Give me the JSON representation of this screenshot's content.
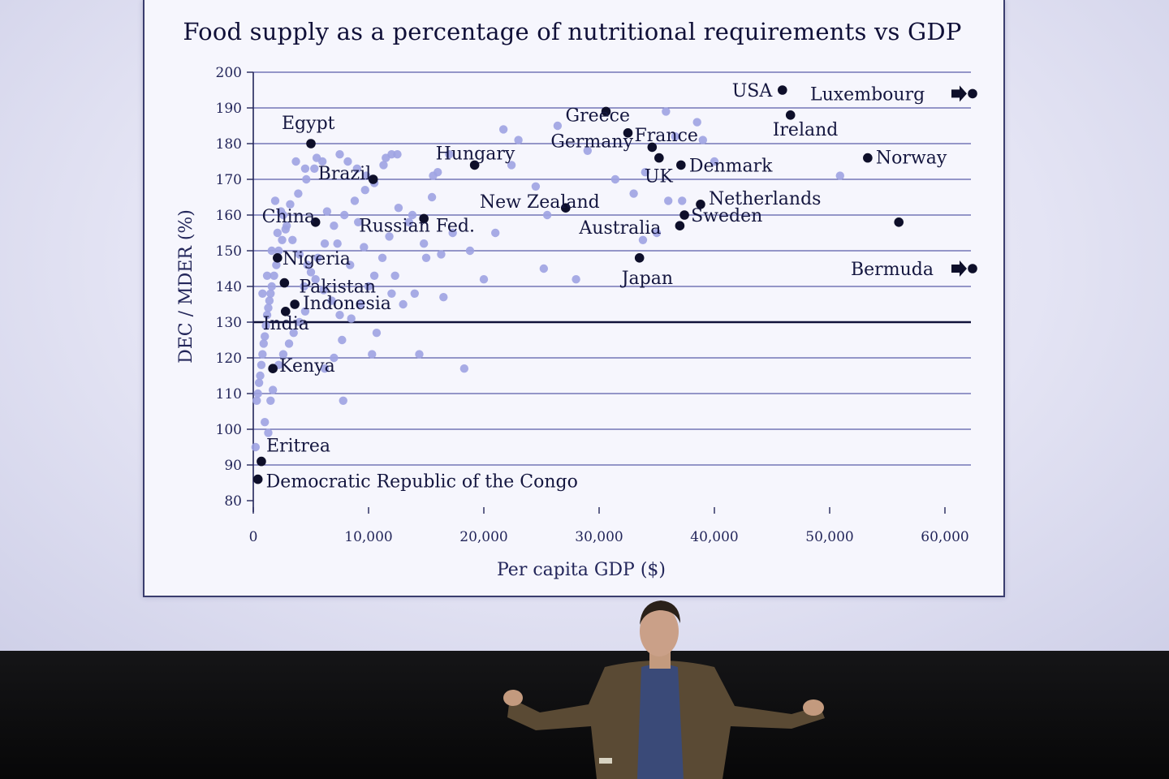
{
  "chart_data": {
    "type": "scatter",
    "title": "Food supply as a percentage of nutritional requirements vs GDP",
    "xlabel": "Per capita GDP ($)",
    "ylabel": "DEC / MDER (%)",
    "xlim": [
      0,
      62000
    ],
    "ylim": [
      80,
      200
    ],
    "x_ticks": [
      0,
      10000,
      20000,
      30000,
      40000,
      50000,
      60000
    ],
    "x_tick_labels": [
      "0",
      "10,000",
      "20,000",
      "30,000",
      "40,000",
      "50,000",
      "60,000"
    ],
    "y_ticks": [
      80,
      90,
      100,
      110,
      120,
      130,
      140,
      150,
      160,
      170,
      180,
      190,
      200
    ],
    "y_tick_labels": [
      "80",
      "90",
      "100",
      "110",
      "120",
      "130",
      "140",
      "150",
      "160",
      "170",
      "180",
      "190",
      "200"
    ],
    "reference_line_y": 130,
    "grid": true,
    "colors": {
      "highlight": "#0e0f2a",
      "other": "#9fa3e2",
      "grid": "#5a5ea8",
      "axis": "#23265a"
    },
    "labeled_points": [
      {
        "name": "USA",
        "x": 45900,
        "y": 195
      },
      {
        "name": "Luxembourg",
        "x": 62000,
        "y": 194,
        "off_scale": true
      },
      {
        "name": "Greece",
        "x": 30600,
        "y": 189
      },
      {
        "name": "Ireland",
        "x": 46600,
        "y": 188
      },
      {
        "name": "France",
        "x": 32500,
        "y": 183
      },
      {
        "name": "Egypt",
        "x": 5000,
        "y": 180
      },
      {
        "name": "Germany",
        "x": 34600,
        "y": 179
      },
      {
        "name": "Norway",
        "x": 53300,
        "y": 176
      },
      {
        "name": "UK",
        "x": 35200,
        "y": 176
      },
      {
        "name": "Hungary",
        "x": 19200,
        "y": 174
      },
      {
        "name": "Denmark",
        "x": 37100,
        "y": 174
      },
      {
        "name": "Brazil",
        "x": 10400,
        "y": 170
      },
      {
        "name": "Netherlands",
        "x": 38800,
        "y": 163
      },
      {
        "name": "New Zealand",
        "x": 27100,
        "y": 162
      },
      {
        "name": "Sweden",
        "x": 37400,
        "y": 160
      },
      {
        "name": "Russian Fed.",
        "x": 14800,
        "y": 159
      },
      {
        "name": "China",
        "x": 5400,
        "y": 158
      },
      {
        "name": "Australia",
        "x": 37000,
        "y": 157
      },
      {
        "name": "Japan",
        "x": 33500,
        "y": 148
      },
      {
        "name": "Nigeria",
        "x": 2100,
        "y": 148
      },
      {
        "name": "Bermuda",
        "x": 62000,
        "y": 145,
        "off_scale": true
      },
      {
        "name": "Pakistan",
        "x": 2700,
        "y": 141
      },
      {
        "name": "Indonesia",
        "x": 3600,
        "y": 135
      },
      {
        "name": "India",
        "x": 2800,
        "y": 133
      },
      {
        "name": "Kenya",
        "x": 1700,
        "y": 117
      },
      {
        "name": "Eritrea",
        "x": 700,
        "y": 91
      },
      {
        "name": "Democratic Republic of the Congo",
        "x": 400,
        "y": 86
      }
    ],
    "unlabeled_highlight": [
      {
        "x": 56000,
        "y": 158
      }
    ],
    "other_points": [
      [
        200,
        95
      ],
      [
        300,
        108
      ],
      [
        400,
        110
      ],
      [
        500,
        113
      ],
      [
        600,
        115
      ],
      [
        700,
        118
      ],
      [
        800,
        121
      ],
      [
        900,
        124
      ],
      [
        1000,
        126
      ],
      [
        1100,
        129
      ],
      [
        1200,
        132
      ],
      [
        1300,
        134
      ],
      [
        1400,
        136
      ],
      [
        1500,
        138
      ],
      [
        1600,
        140
      ],
      [
        1800,
        143
      ],
      [
        2000,
        146
      ],
      [
        2200,
        150
      ],
      [
        2500,
        153
      ],
      [
        2800,
        156
      ],
      [
        1000,
        102
      ],
      [
        1300,
        99
      ],
      [
        1500,
        108
      ],
      [
        1700,
        111
      ],
      [
        2200,
        118
      ],
      [
        2600,
        121
      ],
      [
        3100,
        124
      ],
      [
        3500,
        127
      ],
      [
        4000,
        130
      ],
      [
        4500,
        133
      ],
      [
        800,
        138
      ],
      [
        1200,
        143
      ],
      [
        1600,
        150
      ],
      [
        2100,
        155
      ],
      [
        2600,
        160
      ],
      [
        3200,
        163
      ],
      [
        3900,
        166
      ],
      [
        4600,
        170
      ],
      [
        5300,
        173
      ],
      [
        6000,
        175
      ],
      [
        1900,
        164
      ],
      [
        2400,
        161
      ],
      [
        2900,
        157
      ],
      [
        3400,
        153
      ],
      [
        4000,
        149
      ],
      [
        4700,
        146
      ],
      [
        5400,
        142
      ],
      [
        6100,
        139
      ],
      [
        6800,
        136
      ],
      [
        7500,
        132
      ],
      [
        3700,
        175
      ],
      [
        4500,
        173
      ],
      [
        5500,
        176
      ],
      [
        7500,
        177
      ],
      [
        8200,
        175
      ],
      [
        9000,
        173
      ],
      [
        9800,
        171
      ],
      [
        10500,
        169
      ],
      [
        11300,
        174
      ],
      [
        12000,
        177
      ],
      [
        11500,
        176
      ],
      [
        12500,
        177
      ],
      [
        9700,
        167
      ],
      [
        8800,
        164
      ],
      [
        7900,
        160
      ],
      [
        7000,
        157
      ],
      [
        6200,
        152
      ],
      [
        5600,
        148
      ],
      [
        5000,
        144
      ],
      [
        4400,
        140
      ],
      [
        10500,
        143
      ],
      [
        11200,
        148
      ],
      [
        10700,
        127
      ],
      [
        10300,
        121
      ],
      [
        8500,
        131
      ],
      [
        7700,
        125
      ],
      [
        7000,
        120
      ],
      [
        6200,
        117
      ],
      [
        7800,
        108
      ],
      [
        9300,
        135
      ],
      [
        12000,
        138
      ],
      [
        13000,
        135
      ],
      [
        14000,
        138
      ],
      [
        15000,
        148
      ],
      [
        16000,
        172
      ],
      [
        17000,
        177
      ],
      [
        15500,
        165
      ],
      [
        14800,
        152
      ],
      [
        16500,
        137
      ],
      [
        14400,
        121
      ],
      [
        18300,
        117
      ],
      [
        18800,
        150
      ],
      [
        21000,
        155
      ],
      [
        21700,
        184
      ],
      [
        23000,
        181
      ],
      [
        24500,
        168
      ],
      [
        25500,
        160
      ],
      [
        25200,
        145
      ],
      [
        26400,
        185
      ],
      [
        28000,
        142
      ],
      [
        20000,
        142
      ],
      [
        16300,
        149
      ],
      [
        12600,
        162
      ],
      [
        11800,
        154
      ],
      [
        13500,
        158
      ],
      [
        22400,
        174
      ],
      [
        29000,
        178
      ],
      [
        31400,
        170
      ],
      [
        33000,
        166
      ],
      [
        34000,
        172
      ],
      [
        35800,
        189
      ],
      [
        36600,
        182
      ],
      [
        37200,
        164
      ],
      [
        38500,
        186
      ],
      [
        39000,
        181
      ],
      [
        40000,
        175
      ],
      [
        35000,
        155
      ],
      [
        36000,
        164
      ],
      [
        50900,
        171
      ],
      [
        33800,
        153
      ],
      [
        6400,
        161
      ],
      [
        7300,
        152
      ],
      [
        8400,
        146
      ],
      [
        9100,
        158
      ],
      [
        9600,
        151
      ],
      [
        10000,
        140
      ],
      [
        12300,
        143
      ],
      [
        13800,
        160
      ],
      [
        17300,
        155
      ],
      [
        15600,
        171
      ]
    ]
  }
}
